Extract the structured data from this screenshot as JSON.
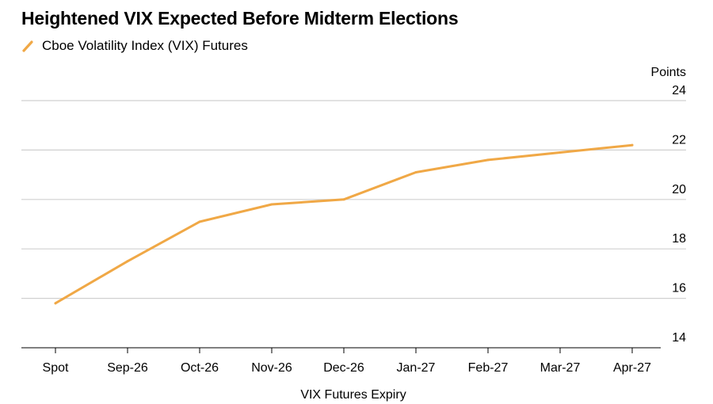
{
  "chart_data": {
    "type": "line",
    "title": "Heightened VIX Expected Before Midterm Elections",
    "xlabel": "VIX Futures Expiry",
    "ylabel": "Points",
    "ylim": [
      14,
      24
    ],
    "yticks": [
      14,
      16,
      18,
      20,
      22,
      24
    ],
    "grid": true,
    "legend_position": "top-left",
    "categories": [
      "Spot",
      "Sep-26",
      "Oct-26",
      "Nov-26",
      "Dec-26",
      "Jan-27",
      "Feb-27",
      "Mar-27",
      "Apr-27"
    ],
    "series": [
      {
        "name": "Cboe Volatility Index (VIX) Futures",
        "color": "#f0a846",
        "values": [
          15.8,
          17.5,
          19.1,
          19.8,
          20.0,
          21.1,
          21.6,
          21.9,
          22.2
        ]
      }
    ]
  }
}
